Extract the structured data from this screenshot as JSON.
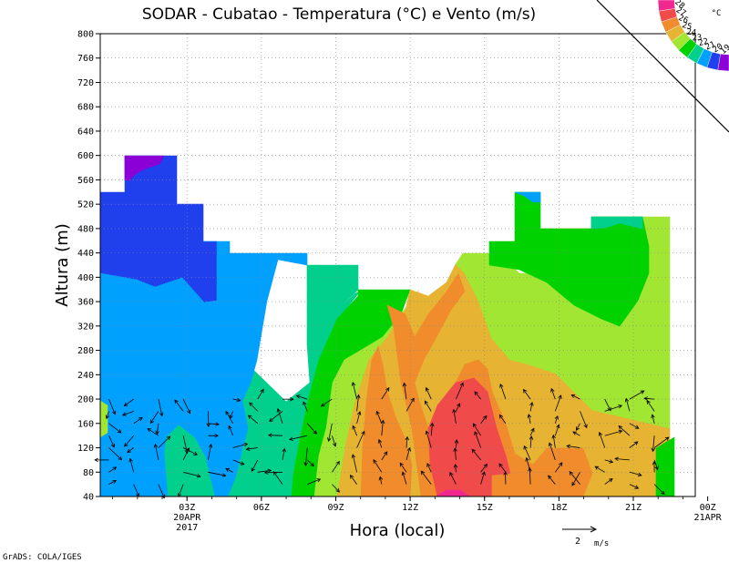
{
  "chart_data": {
    "type": "heatmap",
    "title": "SODAR - Cubatao - Temperatura (°C) e Vento (m/s)",
    "xlabel": "Hora (local)",
    "ylabel": "Altura (m)",
    "ylim": [
      40,
      800
    ],
    "y_ticks": [
      40,
      80,
      120,
      160,
      200,
      240,
      280,
      320,
      360,
      400,
      440,
      480,
      520,
      560,
      600,
      640,
      680,
      720,
      760,
      800
    ],
    "x_ticks": [
      {
        "hour": 3,
        "label": "03Z",
        "date": "20APR",
        "year": "2017"
      },
      {
        "hour": 6,
        "label": "06Z"
      },
      {
        "hour": 9,
        "label": "09Z"
      },
      {
        "hour": 12,
        "label": "12Z"
      },
      {
        "hour": 15,
        "label": "15Z"
      },
      {
        "hour": 18,
        "label": "18Z"
      },
      {
        "hour": 21,
        "label": "21Z"
      },
      {
        "hour": 24,
        "label": "00Z",
        "date": "21APR"
      }
    ],
    "grid": true,
    "legend": {
      "placement": "top-right",
      "unit": "°C",
      "levels": [
        "28",
        "27",
        "26",
        "25",
        "24",
        "23",
        "22",
        "21",
        "20",
        "19"
      ]
    },
    "wind_scale": {
      "label": "2",
      "unit": "m/s"
    },
    "credit": "GrADS: COLA/IGES"
  },
  "colors": {
    "background": "#ffffff",
    "temp_19": "#8b00d6",
    "temp_20": "#2040ee",
    "temp_21": "#00a0ff",
    "temp_22": "#00d08c",
    "temp_23": "#00d200",
    "temp_24": "#a0e632",
    "temp_25": "#e6b432",
    "temp_26": "#f08c2c",
    "temp_27": "#f04a4a",
    "temp_28": "#f02890"
  }
}
